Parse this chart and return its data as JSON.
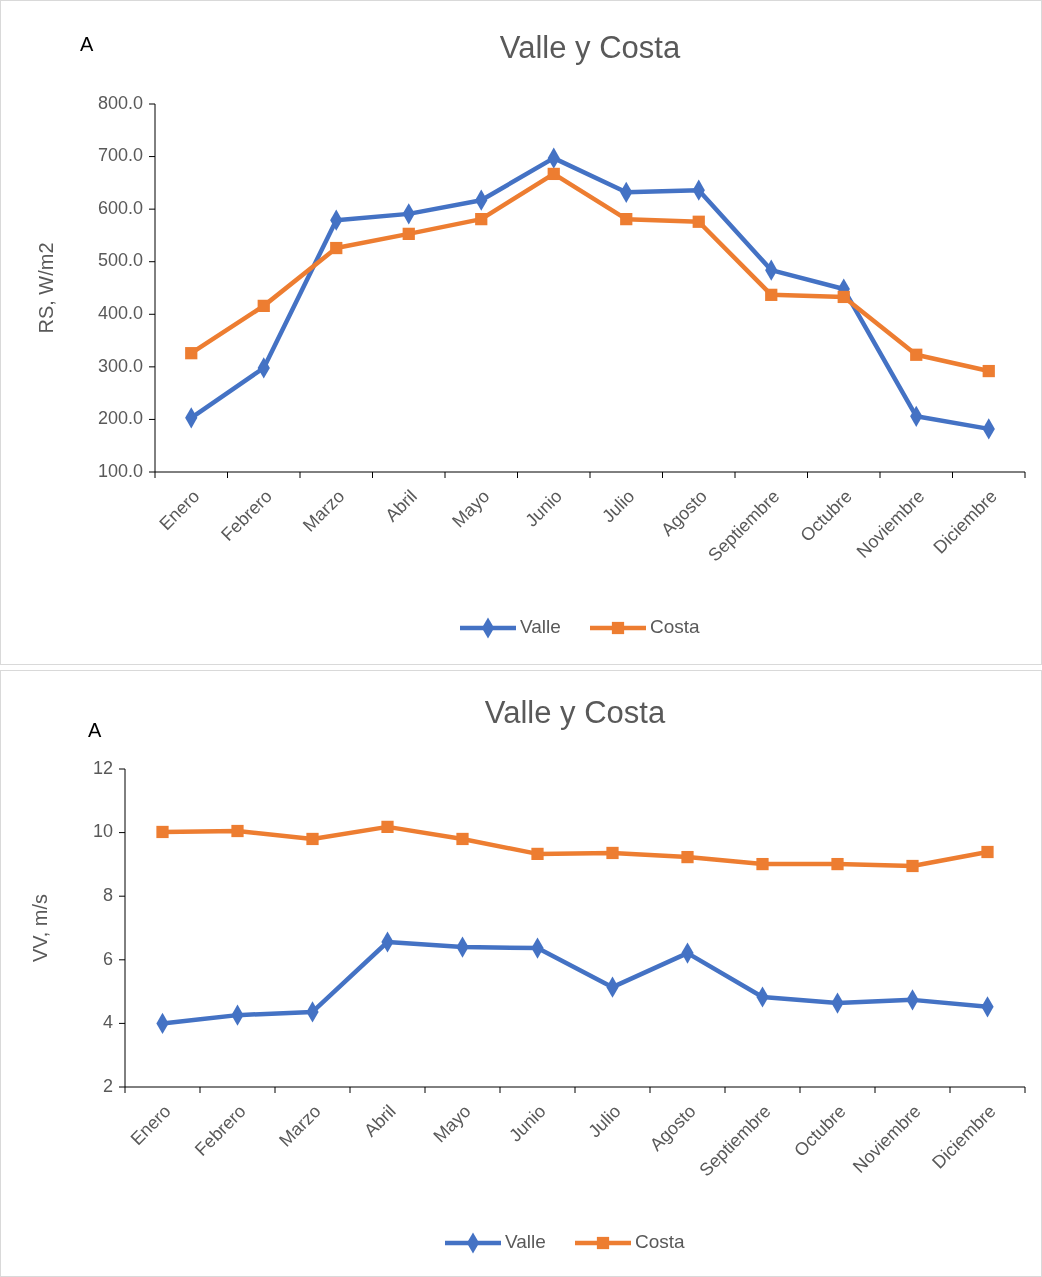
{
  "chart_data": [
    {
      "type": "line",
      "title": "Valle y Costa",
      "ylabel": "RS, W/m2",
      "annotations": [
        "A"
      ],
      "categories": [
        "Enero",
        "Febrero",
        "Marzo",
        "Abril",
        "Mayo",
        "Junio",
        "Julio",
        "Agosto",
        "Septiembre",
        "Octubre",
        "Noviembre",
        "Diciembre"
      ],
      "series": [
        {
          "name": "Valle",
          "color": "#4472c4",
          "marker": "diamond",
          "values": [
            203,
            298,
            579,
            591,
            617,
            697,
            632,
            636,
            484,
            448,
            206,
            182
          ]
        },
        {
          "name": "Costa",
          "color": "#ed7d31",
          "marker": "square",
          "values": [
            326,
            416,
            526,
            553,
            581,
            667,
            581,
            576,
            437,
            433,
            323,
            292
          ]
        }
      ],
      "ylim": [
        100,
        800
      ],
      "yticks": [
        {
          "value": 100,
          "label": "100.0"
        },
        {
          "value": 200,
          "label": "200.0"
        },
        {
          "value": 300,
          "label": "300.0"
        },
        {
          "value": 400,
          "label": "400.0"
        },
        {
          "value": 500,
          "label": "500.0"
        },
        {
          "value": 600,
          "label": "600.0"
        },
        {
          "value": 700,
          "label": "700.0"
        },
        {
          "value": 800,
          "label": "800.0"
        }
      ],
      "grid": false,
      "legend": "bottom",
      "line_style": "solid"
    },
    {
      "type": "line",
      "title": "Valle y Costa",
      "ylabel": "VV, m/s",
      "annotations": [
        "A"
      ],
      "categories": [
        "Enero",
        "Febrero",
        "Marzo",
        "Abril",
        "Mayo",
        "Junio",
        "Julio",
        "Agosto",
        "Septiembre",
        "Octubre",
        "Noviembre",
        "Diciembre"
      ],
      "series": [
        {
          "name": "Valle",
          "color": "#4472c4",
          "marker": "diamond",
          "values": [
            4.0,
            4.26,
            4.36,
            6.56,
            6.4,
            6.37,
            5.14,
            6.21,
            4.83,
            4.64,
            4.74,
            4.52
          ]
        },
        {
          "name": "Costa",
          "color": "#ed7d31",
          "marker": "square",
          "values": [
            10.02,
            10.05,
            9.8,
            10.18,
            9.8,
            9.33,
            9.36,
            9.23,
            9.01,
            9.01,
            8.95,
            9.39
          ]
        }
      ],
      "ylim": [
        2,
        12
      ],
      "yticks": [
        2,
        4,
        6,
        8,
        10,
        12
      ],
      "grid": false,
      "legend": "bottom",
      "line_style": "solid"
    }
  ]
}
